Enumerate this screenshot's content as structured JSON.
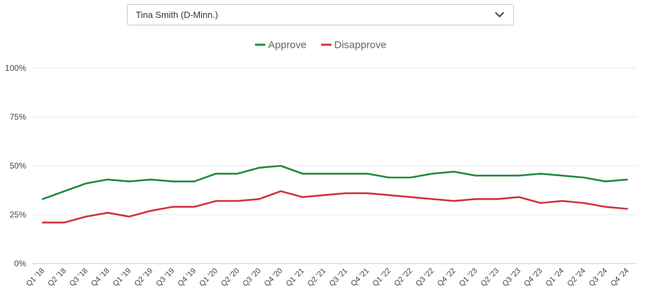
{
  "selector": {
    "value": "Tina Smith (D-Minn.)"
  },
  "icons": {
    "dropdown": "chevron-down-icon"
  },
  "colors": {
    "approve": "#1e8a3a",
    "disapprove": "#d1323b",
    "grid": "#e8e8e8"
  },
  "chart_data": {
    "type": "line",
    "categories": [
      "Q1 '18",
      "Q2 '18",
      "Q3 '18",
      "Q4 '18",
      "Q1 '19",
      "Q2 '19",
      "Q3 '19",
      "Q4 '19",
      "Q1 '20",
      "Q2 '20",
      "Q3 '20",
      "Q4 '20",
      "Q1 '21",
      "Q2 '21",
      "Q3 '21",
      "Q4 '21",
      "Q1 '22",
      "Q2 '22",
      "Q3 '22",
      "Q4 '22",
      "Q1 '23",
      "Q2 '23",
      "Q3 '23",
      "Q4 '23",
      "Q1 '24",
      "Q2 '24",
      "Q3 '24",
      "Q4 '24"
    ],
    "series": [
      {
        "name": "Approve",
        "color": "#1e8a3a",
        "values": [
          33,
          37,
          41,
          43,
          42,
          43,
          42,
          42,
          46,
          46,
          49,
          50,
          46,
          46,
          46,
          46,
          44,
          44,
          46,
          47,
          45,
          45,
          45,
          46,
          45,
          44,
          42,
          43
        ]
      },
      {
        "name": "Disapprove",
        "color": "#d1323b",
        "values": [
          21,
          21,
          24,
          26,
          24,
          27,
          29,
          29,
          32,
          32,
          33,
          37,
          34,
          35,
          36,
          36,
          35,
          34,
          33,
          32,
          33,
          33,
          34,
          31,
          32,
          31,
          29,
          28
        ]
      }
    ],
    "yticks": [
      "0%",
      "25%",
      "50%",
      "75%",
      "100%"
    ],
    "ylim": [
      0,
      100
    ],
    "grid": true,
    "legend_position": "top-center"
  }
}
